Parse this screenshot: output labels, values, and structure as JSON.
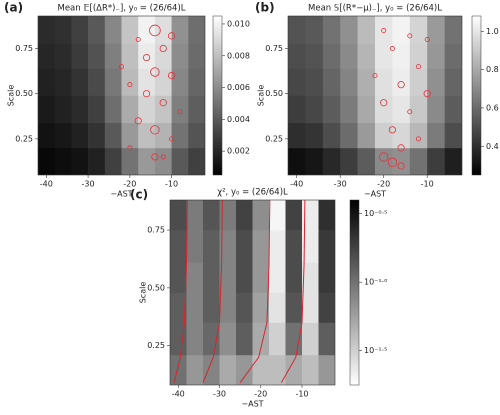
{
  "chart_data": [
    {
      "type": "heatmap",
      "label": "(a)",
      "title": "Mean 𝔼[(ΔR*)₋], y₀ = (26/64)L",
      "xlabel": "−AST",
      "ylabel": "Scale",
      "colormap": "gray",
      "x_edges": [
        -42,
        -38,
        -34,
        -30,
        -26,
        -22,
        -18,
        -14,
        -10,
        -6,
        -2
      ],
      "y_edges": [
        0.05,
        0.2,
        0.34,
        0.49,
        0.64,
        0.78,
        0.93
      ],
      "z": [
        [
          0.0008,
          0.001,
          0.0012,
          0.0018,
          0.003,
          0.005,
          0.0065,
          0.006,
          0.004,
          0.003
        ],
        [
          0.0012,
          0.0014,
          0.0018,
          0.0025,
          0.004,
          0.0065,
          0.008,
          0.0075,
          0.005,
          0.0038
        ],
        [
          0.0015,
          0.0018,
          0.0022,
          0.003,
          0.0048,
          0.0072,
          0.0088,
          0.0082,
          0.0055,
          0.0042
        ],
        [
          0.0018,
          0.002,
          0.0025,
          0.0034,
          0.0052,
          0.0078,
          0.0094,
          0.0088,
          0.0058,
          0.0045
        ],
        [
          0.002,
          0.0022,
          0.0028,
          0.0037,
          0.0055,
          0.008,
          0.0097,
          0.009,
          0.006,
          0.0047
        ],
        [
          0.0022,
          0.0024,
          0.003,
          0.004,
          0.0058,
          0.0082,
          0.01,
          0.0092,
          0.0062,
          0.0048
        ]
      ],
      "zlim": [
        0.0005,
        0.0105
      ],
      "zticks": [
        0.002,
        0.004,
        0.006,
        0.008,
        {
          "value": 0.01,
          "label": "0.010"
        }
      ],
      "xlim": [
        -42,
        -2
      ],
      "ylim": [
        0.05,
        0.93
      ],
      "xticks": [
        -40,
        -30,
        -20,
        -10
      ],
      "yticks": [
        0.25,
        {
          "value": 0.5,
          "label": "0.50"
        },
        0.75
      ],
      "markers": {
        "color": "#e8303a",
        "x": [
          -20,
          -18,
          -16,
          -14,
          -14,
          -14,
          -12,
          -12,
          -10,
          -10,
          -8,
          -16,
          -18,
          -20,
          -14,
          -12,
          -22,
          -10
        ],
        "y": [
          0.2,
          0.35,
          0.5,
          0.85,
          0.62,
          0.3,
          0.75,
          0.45,
          0.6,
          0.25,
          0.4,
          0.7,
          0.8,
          0.55,
          0.15,
          0.15,
          0.65,
          0.82
        ],
        "size": [
          1,
          2,
          2,
          4,
          3,
          3,
          2,
          2,
          2,
          1,
          1,
          2,
          1,
          1,
          2,
          1,
          1,
          2
        ]
      }
    },
    {
      "type": "heatmap",
      "label": "(b)",
      "title": "Mean 𝕊[(R*−μ)₋], y₀ = (26/64)L",
      "xlabel": "−AST",
      "ylabel": "Scale",
      "colormap": "gray",
      "x_edges": [
        -42,
        -38,
        -34,
        -30,
        -26,
        -22,
        -18,
        -14,
        -10,
        -6,
        -2
      ],
      "y_edges": [
        0.05,
        0.2,
        0.34,
        0.49,
        0.64,
        0.78,
        0.93
      ],
      "z": [
        [
          0.3,
          0.32,
          0.38,
          0.45,
          0.55,
          0.7,
          0.72,
          0.62,
          0.45,
          0.35
        ],
        [
          0.4,
          0.42,
          0.5,
          0.6,
          0.75,
          0.92,
          0.95,
          0.85,
          0.65,
          0.5
        ],
        [
          0.45,
          0.48,
          0.55,
          0.65,
          0.8,
          0.97,
          1.0,
          0.9,
          0.7,
          0.55
        ],
        [
          0.48,
          0.5,
          0.58,
          0.68,
          0.82,
          0.98,
          1.02,
          0.92,
          0.72,
          0.58
        ],
        [
          0.5,
          0.52,
          0.6,
          0.7,
          0.84,
          1.0,
          1.03,
          0.93,
          0.74,
          0.6
        ],
        [
          0.52,
          0.54,
          0.62,
          0.72,
          0.86,
          1.0,
          1.04,
          0.94,
          0.75,
          0.62
        ]
      ],
      "zlim": [
        0.25,
        1.08
      ],
      "zticks": [
        0.4,
        0.6,
        0.8,
        {
          "value": 1,
          "label": "1.0"
        }
      ],
      "xlim": [
        -42,
        -2
      ],
      "ylim": [
        0.05,
        0.93
      ],
      "xticks": [
        -40,
        -30,
        -20,
        -10
      ],
      "yticks": [
        0.25,
        {
          "value": 0.5,
          "label": "0.50"
        },
        0.75
      ],
      "markers": {
        "color": "#e8303a",
        "x": [
          -22,
          -20,
          -20,
          -18,
          -18,
          -16,
          -16,
          -14,
          -14,
          -12,
          -12,
          -10,
          -10,
          -20,
          -18,
          -16
        ],
        "y": [
          0.6,
          0.15,
          0.45,
          0.3,
          0.75,
          0.2,
          0.55,
          0.4,
          0.82,
          0.65,
          0.25,
          0.5,
          0.8,
          0.85,
          0.12,
          0.1
        ],
        "size": [
          1,
          3,
          2,
          2,
          1,
          2,
          2,
          1,
          1,
          1,
          1,
          2,
          1,
          1,
          3,
          2
        ]
      }
    },
    {
      "type": "heatmap",
      "label": "(c)",
      "title": "χ², y₀ = (26/64)L",
      "xlabel": "−AST",
      "ylabel": "Scale",
      "colormap": "gray_r",
      "x_edges": [
        -42,
        -38,
        -34,
        -30,
        -26,
        -22,
        -18,
        -14,
        -10,
        -6,
        -2
      ],
      "y_edges": [
        0.08,
        0.21,
        0.35,
        0.48,
        0.61,
        0.75,
        0.88
      ],
      "z": [
        [
          -1.0,
          -1.2,
          -1.1,
          -1.3,
          -1.2,
          -1.4,
          -1.4,
          -1.3,
          -1.4,
          -1.2
        ],
        [
          -0.9,
          -1.1,
          -0.95,
          -1.15,
          -0.9,
          -1.3,
          -1.5,
          -1.0,
          -1.5,
          -0.9
        ],
        [
          -0.9,
          -1.1,
          -0.9,
          -1.1,
          -0.85,
          -1.25,
          -1.6,
          -0.85,
          -1.6,
          -0.75
        ],
        [
          -0.85,
          -1.1,
          -0.9,
          -1.1,
          -0.8,
          -1.2,
          -1.65,
          -0.8,
          -1.6,
          -0.7
        ],
        [
          -0.85,
          -1.05,
          -0.9,
          -1.1,
          -0.8,
          -1.2,
          -1.65,
          -0.8,
          -1.65,
          -0.7
        ],
        [
          -0.8,
          -1.05,
          -0.85,
          -1.05,
          -0.75,
          -1.15,
          -1.7,
          -0.75,
          -1.65,
          -0.65
        ]
      ],
      "zlim": [
        -1.75,
        -0.4
      ],
      "zticks": [
        {
          "value": -0.5,
          "label": "10⁻⁰·⁵"
        },
        {
          "value": -1,
          "label": "10⁻¹·⁰"
        },
        {
          "value": -1.5,
          "label": "10⁻¹·⁵"
        }
      ],
      "xlim": [
        -42,
        -2
      ],
      "ylim": [
        0.08,
        0.88
      ],
      "xticks": [
        -40,
        -30,
        -20,
        -10
      ],
      "yticks": [
        0.25,
        {
          "value": 0.5,
          "label": "0.50"
        },
        0.75
      ],
      "contours": [
        {
          "color": "#d8242e",
          "x": [
            -41,
            -39.5,
            -38.5,
            -38,
            -37.8
          ],
          "y": [
            0.09,
            0.2,
            0.35,
            0.6,
            0.88
          ]
        },
        {
          "color": "#d8242e",
          "x": [
            -34,
            -31.5,
            -30,
            -29.5,
            -29.3
          ],
          "y": [
            0.09,
            0.2,
            0.35,
            0.6,
            0.88
          ]
        },
        {
          "color": "#d8242e",
          "x": [
            -25,
            -20.5,
            -18.5,
            -18,
            -17.8
          ],
          "y": [
            0.09,
            0.2,
            0.35,
            0.6,
            0.88
          ]
        },
        {
          "color": "#d8242e",
          "x": [
            -15,
            -11.5,
            -10,
            -9.5,
            -9.3
          ],
          "y": [
            0.09,
            0.2,
            0.35,
            0.6,
            0.88
          ]
        }
      ]
    }
  ]
}
